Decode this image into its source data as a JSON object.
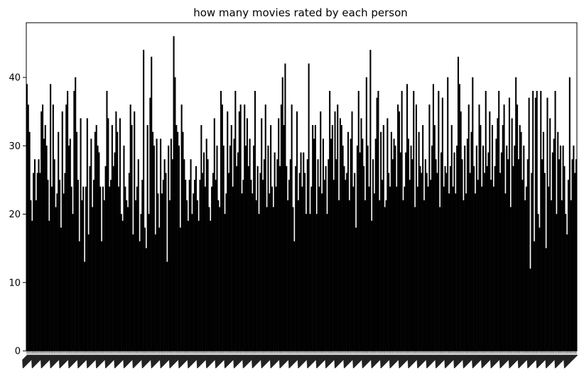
{
  "chart_data": {
    "type": "bar",
    "title": "how many movies rated by each person",
    "xlabel": "",
    "ylabel": "",
    "ylim": [
      0,
      48
    ],
    "yticks": [
      0,
      10,
      20,
      30,
      40
    ],
    "grid": false,
    "legend": "none",
    "x_tick_labels_visible": "dense rotated tick labels (illegible)",
    "values": [
      39,
      36,
      32,
      22,
      19,
      26,
      28,
      22,
      26,
      28,
      26,
      35,
      36,
      31,
      33,
      30,
      25,
      19,
      39,
      24,
      36,
      28,
      21,
      23,
      32,
      25,
      18,
      35,
      23,
      26,
      36,
      38,
      30,
      31,
      24,
      20,
      38,
      40,
      32,
      25,
      16,
      34,
      22,
      24,
      13,
      24,
      34,
      17,
      27,
      31,
      21,
      25,
      32,
      33,
      30,
      29,
      24,
      16,
      24,
      22,
      27,
      38,
      34,
      24,
      25,
      33,
      27,
      29,
      35,
      32,
      24,
      34,
      20,
      19,
      30,
      24,
      22,
      21,
      26,
      36,
      33,
      17,
      35,
      22,
      24,
      28,
      16,
      20,
      25,
      44,
      18,
      15,
      33,
      20,
      37,
      43,
      32,
      30,
      17,
      31,
      23,
      18,
      31,
      23,
      25,
      28,
      26,
      13,
      30,
      22,
      31,
      28,
      46,
      40,
      33,
      32,
      30,
      18,
      36,
      32,
      28,
      25,
      22,
      19,
      25,
      28,
      20,
      23,
      25,
      27,
      22,
      19,
      25,
      33,
      26,
      29,
      24,
      31,
      28,
      21,
      19,
      24,
      26,
      34,
      25,
      30,
      22,
      21,
      38,
      36,
      30,
      20,
      23,
      35,
      26,
      30,
      33,
      24,
      31,
      38,
      27,
      29,
      35,
      36,
      23,
      25,
      36,
      30,
      34,
      27,
      31,
      25,
      23,
      30,
      38,
      22,
      27,
      20,
      26,
      34,
      25,
      28,
      36,
      21,
      30,
      23,
      33,
      24,
      21,
      29,
      24,
      28,
      34,
      27,
      36,
      40,
      33,
      42,
      27,
      22,
      25,
      28,
      36,
      21,
      16,
      27,
      35,
      22,
      26,
      29,
      24,
      29,
      26,
      20,
      28,
      42,
      20,
      24,
      33,
      31,
      33,
      20,
      28,
      24,
      35,
      23,
      31,
      25,
      27,
      20,
      28,
      38,
      31,
      33,
      25,
      35,
      28,
      36,
      22,
      34,
      33,
      30,
      27,
      25,
      26,
      32,
      22,
      31,
      35,
      24,
      26,
      18,
      30,
      38,
      29,
      34,
      31,
      27,
      22,
      40,
      30,
      24,
      44,
      19,
      28,
      23,
      31,
      37,
      38,
      22,
      32,
      25,
      33,
      21,
      22,
      34,
      26,
      24,
      32,
      28,
      31,
      30,
      24,
      36,
      35,
      29,
      38,
      22,
      24,
      29,
      39,
      31,
      25,
      30,
      28,
      38,
      21,
      36,
      24,
      32,
      27,
      26,
      33,
      22,
      28,
      26,
      24,
      36,
      25,
      30,
      39,
      33,
      28,
      26,
      38,
      21,
      29,
      37,
      24,
      27,
      26,
      40,
      23,
      27,
      33,
      24,
      29,
      23,
      30,
      43,
      39,
      35,
      28,
      22,
      30,
      23,
      31,
      36,
      26,
      32,
      40,
      27,
      23,
      30,
      25,
      36,
      33,
      24,
      30,
      26,
      38,
      27,
      29,
      35,
      25,
      33,
      24,
      27,
      31,
      34,
      38,
      26,
      29,
      33,
      36,
      23,
      30,
      28,
      37,
      21,
      34,
      27,
      30,
      40,
      36,
      28,
      33,
      32,
      25,
      30,
      22,
      24,
      28,
      37,
      12,
      26,
      38,
      16,
      37,
      38,
      20,
      18,
      38,
      28,
      32,
      26,
      15,
      37,
      24,
      34,
      22,
      29,
      31,
      38,
      20,
      32,
      28,
      30,
      22,
      30,
      27,
      20,
      17,
      25,
      40,
      22,
      28,
      30,
      26,
      28
    ]
  }
}
